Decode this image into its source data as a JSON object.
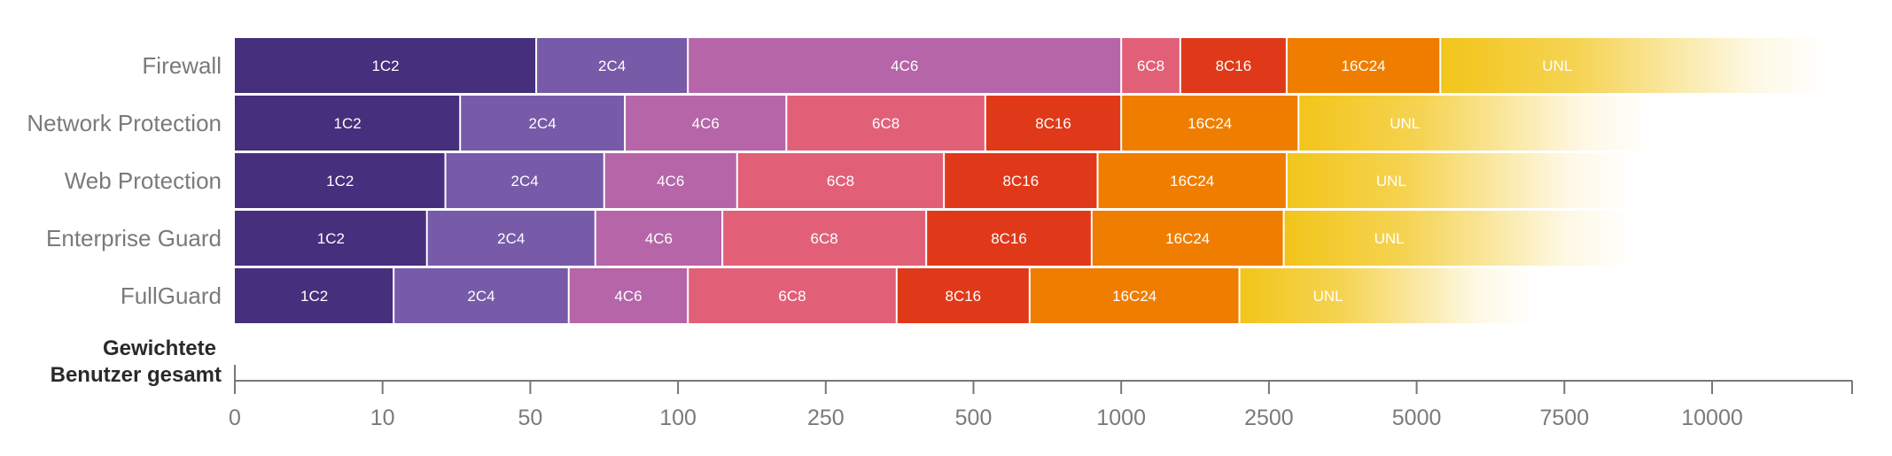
{
  "chart_data": {
    "type": "bar",
    "stacked": true,
    "orientation": "horizontal",
    "x_scale": "categorical-ordinal",
    "xlabel": "Gewichtete Benutzer gesamt",
    "tick_labels": [
      "0",
      "10",
      "50",
      "100",
      "250",
      "500",
      "1000",
      "2500",
      "5000",
      "7500",
      "10000"
    ],
    "categories": [
      "Firewall",
      "Network Protection",
      "Web Protection",
      "Enterprise Guard",
      "FullGuard"
    ],
    "segment_names": [
      "1C2",
      "2C4",
      "4C6",
      "6C8",
      "8C16",
      "16C24",
      "UNL"
    ],
    "segment_colors": [
      "#462f7c",
      "#775aa8",
      "#b565a8",
      "#e16078",
      "#e0391a",
      "#ef7d00",
      "#f2c51a"
    ],
    "last_segment_fades": true,
    "series": [
      {
        "name": "Firewall",
        "boundaries": [
          0,
          52,
          110,
          1000,
          1600,
          2800,
          5400,
          12000
        ]
      },
      {
        "name": "Network Protection",
        "boundaries": [
          0,
          31,
          82,
          210,
          540,
          1000,
          3000,
          9000
        ]
      },
      {
        "name": "Web Protection",
        "boundaries": [
          0,
          27,
          75,
          160,
          450,
          920,
          2800,
          8700
        ]
      },
      {
        "name": "Enterprise Guard",
        "boundaries": [
          0,
          22,
          72,
          145,
          420,
          900,
          2750,
          8700
        ]
      },
      {
        "name": "FullGuard",
        "boundaries": [
          0,
          13,
          63,
          110,
          370,
          690,
          2200,
          7000
        ]
      }
    ]
  }
}
